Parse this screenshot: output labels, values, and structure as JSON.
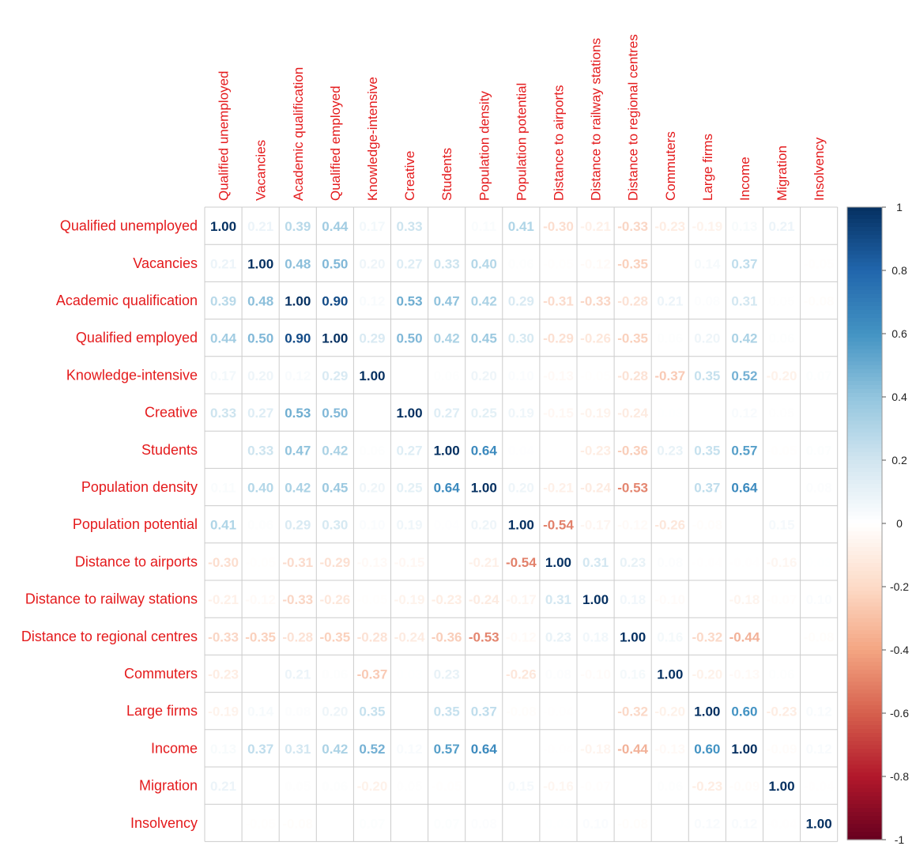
{
  "chart_data": {
    "type": "heatmap",
    "title": "",
    "labels": [
      "Qualified unemployed",
      "Vacancies",
      "Academic qualification",
      "Qualified employed",
      "Knowledge-intensive",
      "Creative",
      "Students",
      "Population density",
      "Population potential",
      "Distance to airports",
      "Distance to railway stations",
      "Distance to regional centres",
      "Commuters",
      "Large firms",
      "Income",
      "Migration",
      "Insolvency"
    ],
    "matrix": [
      [
        1.0,
        0.21,
        0.39,
        0.44,
        0.17,
        0.33,
        0.02,
        0.11,
        0.41,
        -0.3,
        -0.21,
        -0.33,
        -0.23,
        -0.19,
        0.13,
        0.21,
        -0.01
      ],
      [
        0.21,
        1.0,
        0.48,
        0.5,
        0.2,
        0.27,
        0.33,
        0.4,
        0.06,
        -0.05,
        -0.12,
        -0.35,
        -0.02,
        0.14,
        0.37,
        -0.01,
        -0.05
      ],
      [
        0.39,
        0.48,
        1.0,
        0.9,
        0.12,
        0.53,
        0.47,
        0.42,
        0.29,
        -0.31,
        -0.33,
        -0.28,
        0.21,
        0.08,
        0.31,
        0.05,
        -0.08
      ],
      [
        0.44,
        0.5,
        0.9,
        1.0,
        0.29,
        0.5,
        0.42,
        0.45,
        0.3,
        -0.29,
        -0.26,
        -0.35,
        0.06,
        0.2,
        0.42,
        0.06,
        -0.01
      ],
      [
        0.17,
        0.2,
        0.12,
        0.29,
        1.0,
        0.0,
        0.06,
        0.2,
        0.1,
        -0.13,
        -0.05,
        -0.28,
        -0.37,
        0.35,
        0.52,
        -0.2,
        0.07
      ],
      [
        0.33,
        0.27,
        0.53,
        0.5,
        0.0,
        1.0,
        0.27,
        0.25,
        0.19,
        -0.15,
        -0.19,
        -0.24,
        0.03,
        0.01,
        0.12,
        0.05,
        -0.01
      ],
      [
        0.02,
        0.33,
        0.47,
        0.42,
        0.06,
        0.27,
        1.0,
        0.64,
        0.04,
        -0.02,
        -0.23,
        -0.36,
        0.23,
        0.35,
        0.57,
        -0.05,
        0.07
      ],
      [
        0.11,
        0.4,
        0.42,
        0.45,
        0.2,
        0.25,
        0.64,
        1.0,
        0.2,
        -0.21,
        -0.24,
        -0.53,
        0.02,
        0.37,
        0.64,
        0.0,
        0.08
      ],
      [
        0.41,
        0.06,
        0.29,
        0.3,
        0.1,
        0.19,
        0.04,
        0.2,
        1.0,
        -0.54,
        -0.17,
        -0.12,
        -0.26,
        -0.08,
        0.01,
        0.15,
        -0.01
      ],
      [
        -0.3,
        -0.05,
        -0.31,
        -0.29,
        -0.13,
        -0.15,
        -0.02,
        -0.21,
        -0.54,
        1.0,
        0.31,
        0.23,
        0.08,
        -0.04,
        -0.04,
        -0.16,
        0.03
      ],
      [
        -0.21,
        -0.12,
        -0.33,
        -0.26,
        -0.05,
        -0.19,
        -0.23,
        -0.24,
        -0.17,
        0.31,
        1.0,
        0.18,
        -0.1,
        -0.01,
        -0.18,
        -0.07,
        0.1
      ],
      [
        -0.33,
        -0.35,
        -0.28,
        -0.35,
        -0.28,
        -0.24,
        -0.36,
        -0.53,
        -0.12,
        0.23,
        0.18,
        1.0,
        0.16,
        -0.32,
        -0.44,
        0.01,
        -0.08
      ],
      [
        -0.23,
        -0.02,
        0.21,
        0.06,
        -0.37,
        0.03,
        0.23,
        0.02,
        -0.26,
        0.08,
        -0.1,
        0.16,
        1.0,
        -0.2,
        -0.13,
        0.06,
        0.02
      ],
      [
        -0.19,
        0.14,
        0.08,
        0.2,
        0.35,
        0.01,
        0.35,
        0.37,
        -0.08,
        -0.04,
        -0.01,
        -0.32,
        -0.2,
        1.0,
        0.6,
        -0.23,
        0.12
      ],
      [
        0.13,
        0.37,
        0.31,
        0.42,
        0.52,
        0.12,
        0.57,
        0.64,
        0.01,
        -0.04,
        -0.18,
        -0.44,
        -0.13,
        0.6,
        1.0,
        -0.09,
        0.12
      ],
      [
        0.21,
        -0.01,
        0.05,
        0.06,
        -0.2,
        0.05,
        -0.05,
        0.0,
        0.15,
        -0.16,
        -0.07,
        0.01,
        0.06,
        -0.23,
        -0.09,
        1.0,
        -0.04
      ],
      [
        -0.01,
        -0.05,
        -0.08,
        -0.01,
        0.07,
        -0.01,
        0.07,
        0.08,
        -0.01,
        0.03,
        0.1,
        -0.08,
        0.02,
        0.12,
        0.12,
        -0.04,
        1.0
      ]
    ],
    "value_range": [
      -1,
      1
    ],
    "colorbar": {
      "ticks": [
        1,
        0.8,
        0.6,
        0.4,
        0.2,
        0,
        -0.2,
        -0.4,
        -0.6,
        -0.8,
        -1
      ],
      "tick_labels": [
        "1",
        "0.8",
        "0.6",
        "0.4",
        "0.2",
        "0",
        "-0.2",
        "-0.4",
        "-0.6",
        "-0.8",
        "-1"
      ],
      "placement": "right"
    },
    "colors": {
      "label": "#e41a1c",
      "positive_dark": "#053061",
      "negative_dark": "#67001f",
      "grid": "#cccccc"
    }
  }
}
